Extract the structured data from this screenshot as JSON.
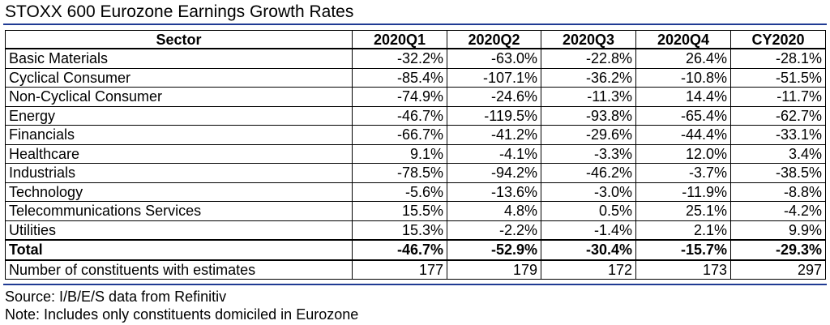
{
  "title": "STOXX 600 Eurozone Earnings Growth Rates",
  "table": {
    "headers": [
      "Sector",
      "2020Q1",
      "2020Q2",
      "2020Q3",
      "2020Q4",
      "CY2020"
    ],
    "rows": [
      {
        "sector": "Basic Materials",
        "values": [
          "-32.2%",
          "-63.0%",
          "-22.8%",
          "26.4%",
          "-28.1%"
        ]
      },
      {
        "sector": "Cyclical Consumer",
        "values": [
          "-85.4%",
          "-107.1%",
          "-36.2%",
          "-10.8%",
          "-51.5%"
        ]
      },
      {
        "sector": "Non-Cyclical Consumer",
        "values": [
          "-74.9%",
          "-24.6%",
          "-11.3%",
          "14.4%",
          "-11.7%"
        ]
      },
      {
        "sector": "Energy",
        "values": [
          "-46.7%",
          "-119.5%",
          "-93.8%",
          "-65.4%",
          "-62.7%"
        ]
      },
      {
        "sector": "Financials",
        "values": [
          "-66.7%",
          "-41.2%",
          "-29.6%",
          "-44.4%",
          "-33.1%"
        ]
      },
      {
        "sector": "Healthcare",
        "values": [
          "9.1%",
          "-4.1%",
          "-3.3%",
          "12.0%",
          "3.4%"
        ]
      },
      {
        "sector": "Industrials",
        "values": [
          "-78.5%",
          "-94.2%",
          "-46.2%",
          "-3.7%",
          "-38.5%"
        ]
      },
      {
        "sector": "Technology",
        "values": [
          "-5.6%",
          "-13.6%",
          "-3.0%",
          "-11.9%",
          "-8.8%"
        ]
      },
      {
        "sector": "Telecommunications Services",
        "values": [
          "15.5%",
          "4.8%",
          "0.5%",
          "25.1%",
          "-4.2%"
        ]
      },
      {
        "sector": "Utilities",
        "values": [
          "15.3%",
          "-2.2%",
          "-1.4%",
          "2.1%",
          "9.9%"
        ]
      }
    ],
    "total": {
      "sector": "Total",
      "values": [
        "-46.7%",
        "-52.9%",
        "-30.4%",
        "-15.7%",
        "-29.3%"
      ]
    },
    "constituents": {
      "sector": "Number of constituents with estimates",
      "values": [
        "177",
        "179",
        "172",
        "173",
        "297"
      ]
    }
  },
  "notes": {
    "source": "Source: I/B/E/S data from Refinitiv",
    "note": "Note: Includes only constituents domiciled in Eurozone"
  },
  "colors": {
    "rule": "#1f3a93"
  }
}
